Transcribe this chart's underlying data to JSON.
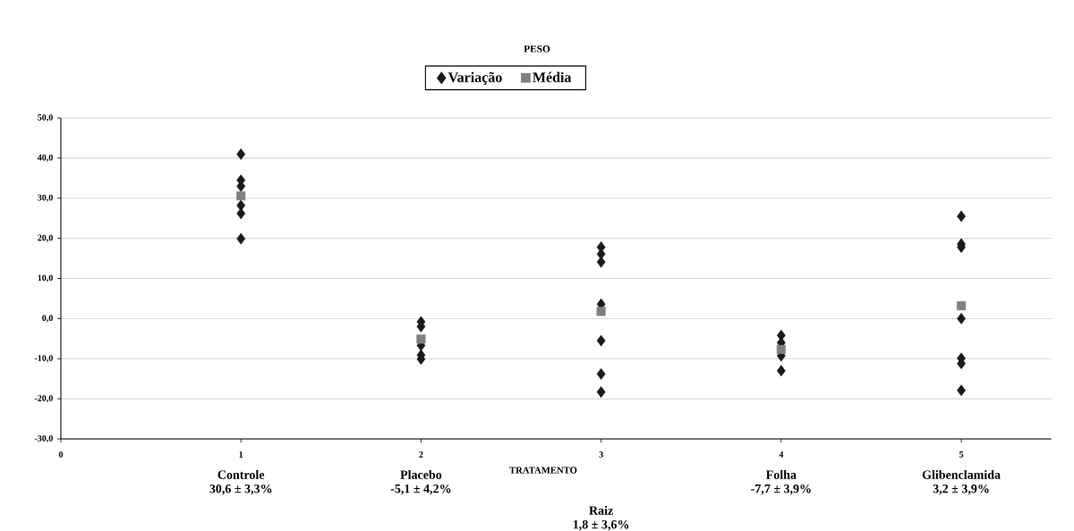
{
  "chart_data": {
    "type": "scatter",
    "title": "PESO",
    "xlabel": "TRATAMENTO",
    "xlim": [
      0,
      5.5
    ],
    "xticks": [
      0,
      1,
      2,
      3,
      4,
      5
    ],
    "ylim": [
      -30,
      50
    ],
    "yticks": [
      {
        "value": -30,
        "label": "-30,0"
      },
      {
        "value": -20,
        "label": "-20,0"
      },
      {
        "value": -10,
        "label": "-10,0"
      },
      {
        "value": 0,
        "label": "0,0"
      },
      {
        "value": 10,
        "label": "10,0"
      },
      {
        "value": 20,
        "label": "20,0"
      },
      {
        "value": 30,
        "label": "30,0"
      },
      {
        "value": 40,
        "label": "40,0"
      },
      {
        "value": 50,
        "label": "50,0"
      }
    ],
    "grid": "y",
    "legend": "top",
    "series": [
      {
        "name": "Variação",
        "color": "#1a1a1a",
        "marker": "diamond",
        "x": [
          1,
          1,
          1,
          1,
          1,
          1,
          2,
          2,
          2,
          2,
          2,
          3,
          3,
          3,
          3,
          3,
          3,
          3,
          4,
          4,
          4,
          4,
          5,
          5,
          5,
          5,
          5,
          5,
          5
        ],
        "values": [
          41.0,
          34.5,
          33.0,
          28.2,
          26.2,
          19.9,
          -0.8,
          -2.0,
          -6.7,
          -9.1,
          -10.1,
          17.8,
          16.1,
          14.1,
          3.6,
          -5.5,
          -13.8,
          -18.3,
          -4.2,
          -6.0,
          -9.3,
          -13.0,
          25.5,
          18.6,
          17.8,
          0.0,
          -9.9,
          -11.2,
          -17.9
        ]
      },
      {
        "name": "Média",
        "color": "#808080",
        "marker": "square",
        "x": [
          1,
          2,
          3,
          4,
          5
        ],
        "values": [
          30.6,
          -5.1,
          1.8,
          -7.7,
          3.2
        ]
      }
    ],
    "annotations": [
      "Controle",
      "30,6  ± 3,3%",
      "Placebo",
      "-5,1  ± 4,2%",
      "Raiz",
      "1,8  ± 3,6%",
      "Folha",
      "-7,7  ± 3,9%",
      "Glibenclamida",
      "3,2  ± 3,9%"
    ]
  }
}
